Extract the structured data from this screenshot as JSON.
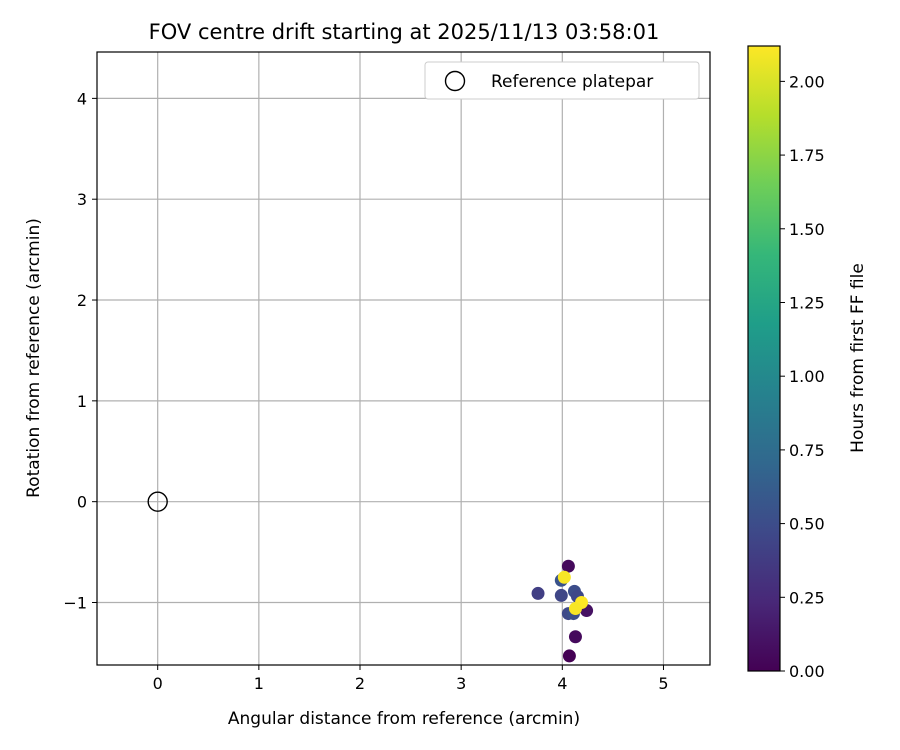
{
  "chart_data": {
    "type": "scatter",
    "title": "FOV centre drift starting at 2025/11/13 03:58:01",
    "xlabel": "Angular distance from reference (arcmin)",
    "ylabel": "Rotation from reference (arcmin)",
    "xlim": [
      -0.6,
      5.46
    ],
    "ylim": [
      -1.62,
      4.46
    ],
    "xticks": [
      0,
      1,
      2,
      3,
      4,
      5
    ],
    "yticks": [
      -1,
      0,
      1,
      2,
      3,
      4
    ],
    "xtick_labels": [
      "0",
      "1",
      "2",
      "3",
      "4",
      "5"
    ],
    "ytick_labels": [
      "−1",
      "0",
      "1",
      "2",
      "3",
      "4"
    ],
    "grid": true,
    "legend": {
      "placement": "top-right",
      "label": "Reference platepar"
    },
    "reference_point": {
      "x": 0,
      "y": 0
    },
    "points": [
      {
        "x": 4.07,
        "y": -1.53,
        "hours": 0.0
      },
      {
        "x": 4.13,
        "y": -1.34,
        "hours": 0.05
      },
      {
        "x": 4.06,
        "y": -0.64,
        "hours": 0.05
      },
      {
        "x": 4.24,
        "y": -1.08,
        "hours": 0.1
      },
      {
        "x": 3.76,
        "y": -0.91,
        "hours": 0.4
      },
      {
        "x": 3.99,
        "y": -0.93,
        "hours": 0.45
      },
      {
        "x": 4.12,
        "y": -0.89,
        "hours": 0.5
      },
      {
        "x": 4.06,
        "y": -1.11,
        "hours": 0.48
      },
      {
        "x": 4.11,
        "y": -1.11,
        "hours": 0.52
      },
      {
        "x": 4.15,
        "y": -0.94,
        "hours": 0.46
      },
      {
        "x": 3.99,
        "y": -0.78,
        "hours": 0.55
      },
      {
        "x": 4.02,
        "y": -0.75,
        "hours": 2.1
      },
      {
        "x": 4.19,
        "y": -1.0,
        "hours": 2.12
      },
      {
        "x": 4.13,
        "y": -1.06,
        "hours": 2.1
      }
    ],
    "colorbar": {
      "label": "Hours from first FF file",
      "range": [
        0,
        2.12
      ],
      "ticks": [
        0,
        0.25,
        0.5,
        0.75,
        1.0,
        1.25,
        1.5,
        1.75,
        2.0
      ],
      "tick_labels": [
        "0.00",
        "0.25",
        "0.50",
        "0.75",
        "1.00",
        "1.25",
        "1.50",
        "1.75",
        "2.00"
      ],
      "colormap": "viridis",
      "colors": [
        "#440154",
        "#482878",
        "#3e4989",
        "#31688e",
        "#26828e",
        "#1f9e89",
        "#35b779",
        "#6ece58",
        "#b5de2b",
        "#fde725"
      ]
    }
  }
}
